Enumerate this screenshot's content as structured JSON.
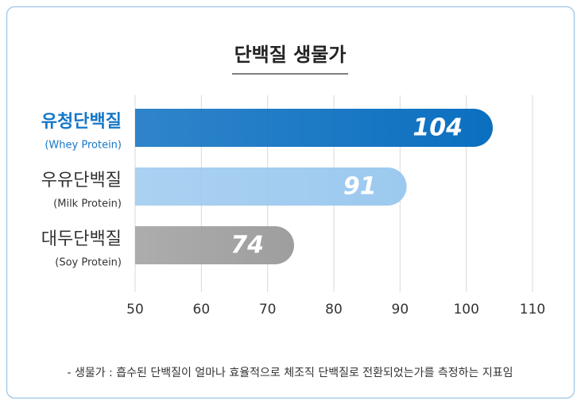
{
  "chart_data": {
    "type": "bar",
    "orientation": "horizontal",
    "title": "단백질 생물가",
    "categories": [
      "유청단백질",
      "우유단백질",
      "대두단백질"
    ],
    "sublabels": [
      "(Whey Protein)",
      "(Milk Protein)",
      "(Soy Protein)"
    ],
    "label_colors": [
      "#1577c8",
      "#333333",
      "#333333"
    ],
    "values": [
      104,
      91,
      74
    ],
    "colors": [
      "#0b6fc0",
      "#9cc9ef",
      "#9e9e9e"
    ],
    "xlim": [
      50,
      110
    ],
    "xticks": [
      50,
      60,
      70,
      80,
      90,
      100,
      110
    ],
    "grid": true,
    "footnote": "- 생물가 : 흡수된 단백질이 얼마나 효율적으로 체조직 단백질로 전환되었는가를 측정하는 지표임"
  }
}
